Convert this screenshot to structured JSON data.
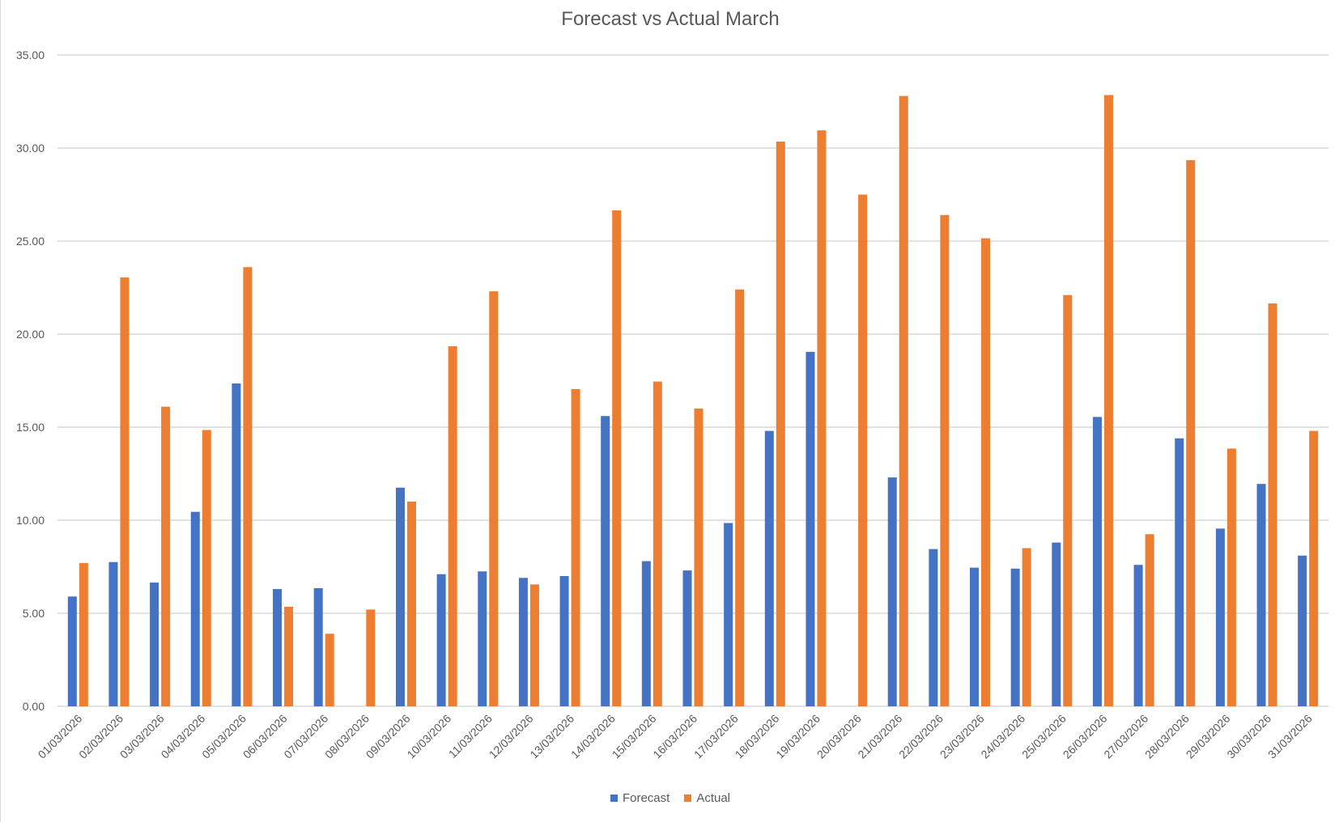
{
  "chart_data": {
    "type": "bar",
    "title": "Forecast vs Actual March",
    "xlabel": "",
    "ylabel": "",
    "ylim": [
      0,
      35
    ],
    "yticks": [
      "0.00",
      "5.00",
      "10.00",
      "15.00",
      "20.00",
      "25.00",
      "30.00",
      "35.00"
    ],
    "grid": true,
    "legend_position": "bottom",
    "categories": [
      "01/03/2026",
      "02/03/2026",
      "03/03/2026",
      "04/03/2026",
      "05/03/2026",
      "06/03/2026",
      "07/03/2026",
      "08/03/2026",
      "09/03/2026",
      "10/03/2026",
      "11/03/2026",
      "12/03/2026",
      "13/03/2026",
      "14/03/2026",
      "15/03/2026",
      "16/03/2026",
      "17/03/2026",
      "18/03/2026",
      "19/03/2026",
      "20/03/2026",
      "21/03/2026",
      "22/03/2026",
      "23/03/2026",
      "24/03/2026",
      "25/03/2026",
      "26/03/2026",
      "27/03/2026",
      "28/03/2026",
      "29/03/2026",
      "30/03/2026",
      "31/03/2026"
    ],
    "series": [
      {
        "name": "Forecast",
        "color": "#4472c4",
        "values": [
          5.9,
          7.75,
          6.65,
          10.45,
          17.35,
          6.3,
          6.35,
          null,
          11.75,
          7.1,
          7.25,
          6.9,
          7.0,
          15.6,
          7.8,
          7.3,
          9.85,
          14.8,
          19.05,
          null,
          12.3,
          8.45,
          7.45,
          7.4,
          8.8,
          15.55,
          7.6,
          14.4,
          9.55,
          11.95,
          8.1
        ]
      },
      {
        "name": "Actual",
        "color": "#ed7d31",
        "values": [
          7.7,
          23.05,
          16.1,
          14.85,
          23.6,
          5.35,
          3.9,
          5.2,
          11.0,
          19.35,
          22.3,
          6.55,
          17.05,
          26.65,
          17.45,
          16.0,
          22.4,
          30.35,
          30.95,
          27.5,
          32.8,
          26.4,
          25.15,
          8.5,
          22.1,
          32.85,
          9.25,
          29.35,
          13.85,
          21.65,
          14.8
        ]
      }
    ]
  }
}
